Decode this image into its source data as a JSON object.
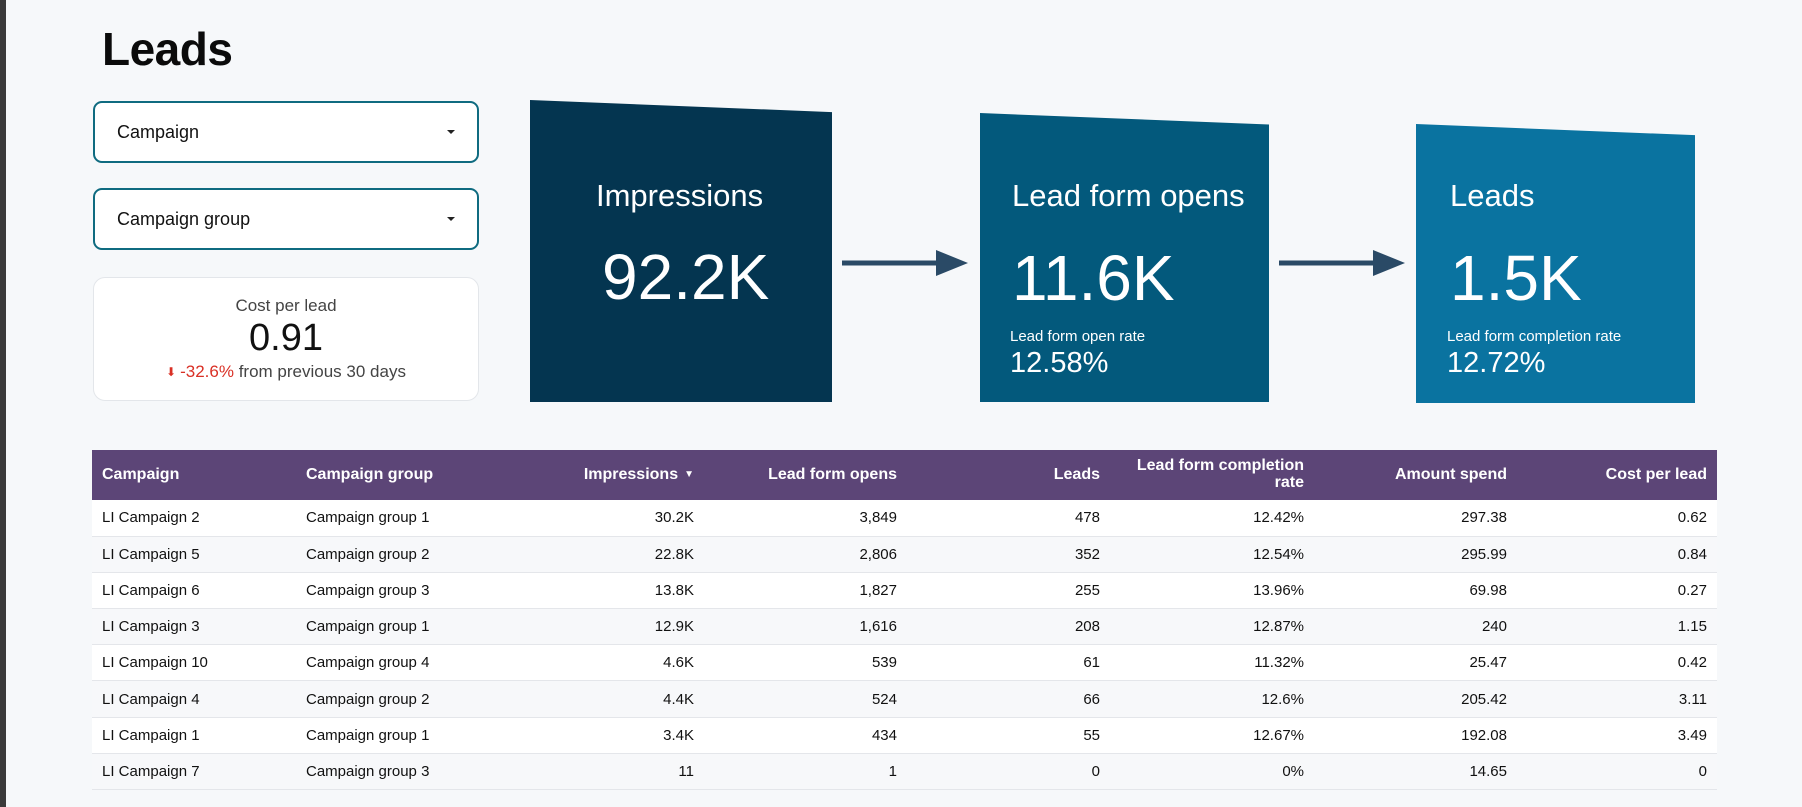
{
  "page": {
    "title": "Leads"
  },
  "filters": {
    "campaign_label": "Campaign",
    "campaign_group_label": "Campaign group"
  },
  "kpi": {
    "label": "Cost per lead",
    "value": "0.91",
    "delta": "-32.6%",
    "delta_suffix": "from previous 30 days",
    "delta_color": "#d93025"
  },
  "funnel": {
    "impressions": {
      "title": "Impressions",
      "value": "92.2K",
      "color": "#043550"
    },
    "lead_form_opens": {
      "title": "Lead form opens",
      "value": "11.6K",
      "rate_label": "Lead form open rate",
      "rate_value": "12.58%",
      "color": "#03597c"
    },
    "leads": {
      "title": "Leads",
      "value": "1.5K",
      "rate_label": "Lead form completion rate",
      "rate_value": "12.72%",
      "color": "#0a73a0"
    }
  },
  "table": {
    "header_color": "#5c4577",
    "columns": [
      "Campaign",
      "Campaign group",
      "Impressions",
      "Lead form opens",
      "Leads",
      "Lead form completion rate",
      "Amount spend",
      "Cost per lead"
    ],
    "rows": [
      [
        "LI Campaign 2",
        "Campaign group 1",
        "30.2K",
        "3,849",
        "478",
        "12.42%",
        "297.38",
        "0.62"
      ],
      [
        "LI Campaign 5",
        "Campaign group 2",
        "22.8K",
        "2,806",
        "352",
        "12.54%",
        "295.99",
        "0.84"
      ],
      [
        "LI Campaign 6",
        "Campaign group 3",
        "13.8K",
        "1,827",
        "255",
        "13.96%",
        "69.98",
        "0.27"
      ],
      [
        "LI Campaign 3",
        "Campaign group 1",
        "12.9K",
        "1,616",
        "208",
        "12.87%",
        "240",
        "1.15"
      ],
      [
        "LI Campaign 10",
        "Campaign group 4",
        "4.6K",
        "539",
        "61",
        "11.32%",
        "25.47",
        "0.42"
      ],
      [
        "LI Campaign 4",
        "Campaign group 2",
        "4.4K",
        "524",
        "66",
        "12.6%",
        "205.42",
        "3.11"
      ],
      [
        "LI Campaign 1",
        "Campaign group 1",
        "3.4K",
        "434",
        "55",
        "12.67%",
        "192.08",
        "3.49"
      ],
      [
        "LI Campaign 7",
        "Campaign group 3",
        "11",
        "1",
        "0",
        "0%",
        "14.65",
        "0"
      ]
    ]
  }
}
